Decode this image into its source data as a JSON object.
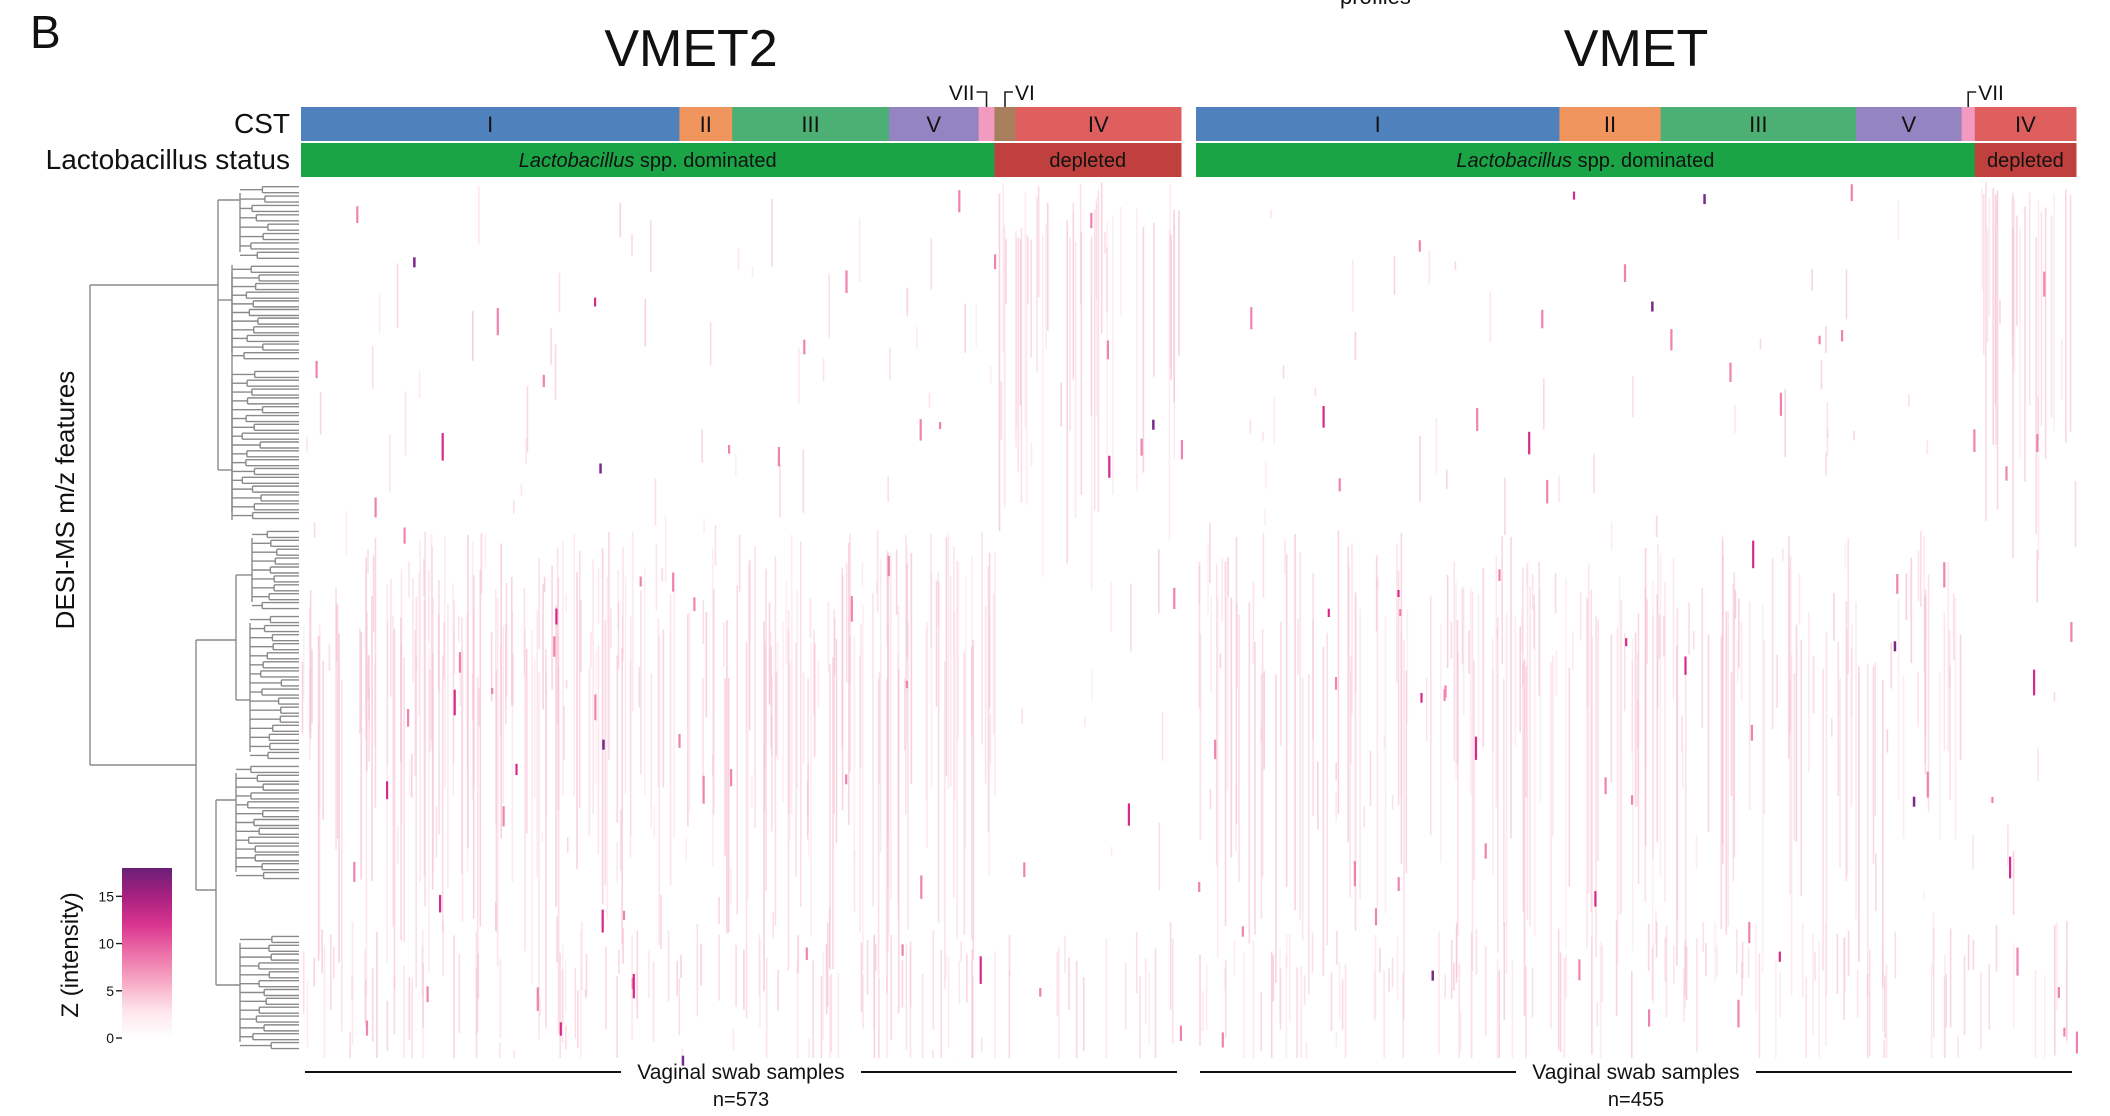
{
  "panel_letter": "B",
  "top_crop_text": "profiles",
  "row_labels": {
    "cst": "CST",
    "lacto": "Lactobacillus status"
  },
  "y_axis_label": "DESI-MS m/z features",
  "colorbar": {
    "title": "Z (intensity)",
    "ticks": [
      0,
      5,
      10,
      15
    ],
    "range": [
      0,
      18
    ],
    "colors": [
      "#ffffff",
      "#fde3ea",
      "#f7a8c4",
      "#ec6fa8",
      "#d9358f",
      "#a8217f",
      "#6a1f78"
    ]
  },
  "colors": {
    "cst_I": "#4f81bd",
    "cst_II": "#f0955e",
    "cst_III": "#4caf73",
    "cst_V": "#9484c2",
    "cst_VII": "#f29ac0",
    "cst_VI": "#a77f5c",
    "cst_IV": "#df5f5f",
    "dominated": "#1ba446",
    "depleted": "#c0403d",
    "heat_light": "#f7c2d3",
    "heat_mid": "#ee82b0",
    "heat_dark": "#d62a8a",
    "heat_max": "#7b2a8c",
    "dendro": "#8a8a8a"
  },
  "panels": [
    {
      "title": "VMET2",
      "cst_segments": [
        {
          "label": "I",
          "frac": 0.43,
          "color_key": "cst_I"
        },
        {
          "label": "II",
          "frac": 0.06,
          "color_key": "cst_II"
        },
        {
          "label": "III",
          "frac": 0.178,
          "color_key": "cst_III"
        },
        {
          "label": "V",
          "frac": 0.102,
          "color_key": "cst_V"
        },
        {
          "label": "",
          "frac": 0.018,
          "color_key": "cst_VII"
        },
        {
          "label": "",
          "frac": 0.024,
          "color_key": "cst_VI"
        },
        {
          "label": "IV",
          "frac": 0.188,
          "color_key": "cst_IV"
        }
      ],
      "callouts": [
        {
          "label": "VII",
          "segment": 4
        },
        {
          "label": "VI",
          "segment": 5
        }
      ],
      "status": [
        {
          "italic": "Lactobacillus",
          "rest": " spp. dominated",
          "frac": 0.788,
          "color_key": "dominated"
        },
        {
          "italic": "",
          "rest": "depleted",
          "frac": 0.212,
          "color_key": "depleted"
        }
      ],
      "x_label": "Vaginal swab samples",
      "n_label": "n=573"
    },
    {
      "title": "VMET",
      "cst_segments": [
        {
          "label": "I",
          "frac": 0.413,
          "color_key": "cst_I"
        },
        {
          "label": "II",
          "frac": 0.115,
          "color_key": "cst_II"
        },
        {
          "label": "III",
          "frac": 0.222,
          "color_key": "cst_III"
        },
        {
          "label": "V",
          "frac": 0.12,
          "color_key": "cst_V"
        },
        {
          "label": "",
          "frac": 0.015,
          "color_key": "cst_VII"
        },
        {
          "label": "IV",
          "frac": 0.115,
          "color_key": "cst_IV"
        }
      ],
      "callouts": [
        {
          "label": "VII",
          "segment": 4
        }
      ],
      "status": [
        {
          "italic": "Lactobacillus",
          "rest": " spp. dominated",
          "frac": 0.885,
          "color_key": "dominated"
        },
        {
          "italic": "",
          "rest": "depleted",
          "frac": 0.115,
          "color_key": "depleted"
        }
      ],
      "x_label": "Vaginal swab samples",
      "n_label": "n=455"
    }
  ],
  "chart_data": {
    "type": "heatmap",
    "series": [
      {
        "name": "VMET2",
        "samples": 573
      },
      {
        "name": "VMET",
        "samples": 455
      }
    ],
    "colorbar_label": "Z (intensity)",
    "colorbar_ticks": [
      0,
      5,
      10,
      15
    ],
    "ylabel": "DESI-MS m/z features",
    "xlabel": "Vaginal swab samples"
  }
}
